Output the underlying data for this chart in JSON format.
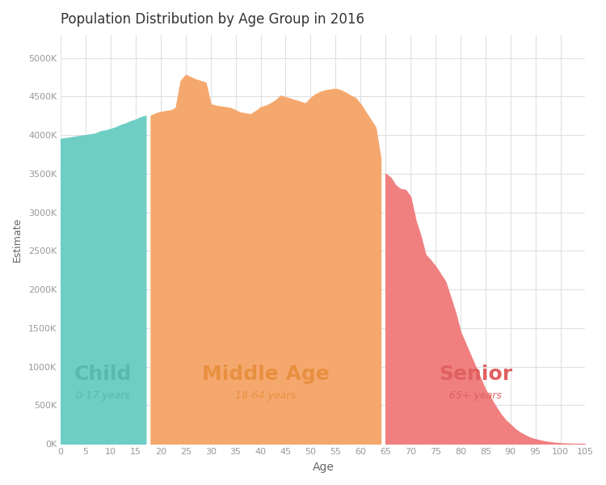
{
  "title": "Population Distribution by Age Group in 2016",
  "xlabel": "Age",
  "ylabel": "Estimate",
  "background_color": "#ffffff",
  "grid_color": "#e0e0e0",
  "child_color": "#6ecec4",
  "middle_color": "#f5a86e",
  "senior_color": "#f08080",
  "child_label": "Child",
  "child_sublabel": "0-17 years",
  "middle_label": "Middle Age",
  "middle_sublabel": "18-64 years",
  "senior_label": "Senior",
  "senior_sublabel": "65+ years",
  "child_label_color": "#5ab8ae",
  "middle_label_color": "#e89040",
  "senior_label_color": "#e06060",
  "title_fontsize": 12,
  "label_fontsize": 18,
  "sublabel_fontsize": 9,
  "xlim": [
    0,
    105
  ],
  "ylim": [
    0,
    5300000
  ],
  "yticks": [
    0,
    500000,
    1000000,
    1500000,
    2000000,
    2500000,
    3000000,
    3500000,
    4000000,
    4500000,
    5000000
  ],
  "xticks": [
    0,
    5,
    10,
    15,
    20,
    25,
    30,
    35,
    40,
    45,
    50,
    55,
    60,
    65,
    70,
    75,
    80,
    85,
    90,
    95,
    100,
    105
  ],
  "child_ages": [
    0,
    1,
    2,
    3,
    4,
    5,
    6,
    7,
    8,
    9,
    10,
    11,
    12,
    13,
    14,
    15,
    16,
    17
  ],
  "child_pop": [
    3950000,
    3960000,
    3970000,
    3980000,
    3990000,
    4000000,
    4010000,
    4020000,
    4050000,
    4060000,
    4080000,
    4100000,
    4130000,
    4150000,
    4180000,
    4200000,
    4230000,
    4250000
  ],
  "middle_ages": [
    18,
    19,
    20,
    21,
    22,
    23,
    24,
    25,
    26,
    27,
    28,
    29,
    30,
    31,
    32,
    33,
    34,
    35,
    36,
    37,
    38,
    39,
    40,
    41,
    42,
    43,
    44,
    45,
    46,
    47,
    48,
    49,
    50,
    51,
    52,
    53,
    54,
    55,
    56,
    57,
    58,
    59,
    60,
    61,
    62,
    63,
    64
  ],
  "middle_pop": [
    4250000,
    4280000,
    4300000,
    4310000,
    4320000,
    4350000,
    4700000,
    4780000,
    4750000,
    4720000,
    4700000,
    4680000,
    4400000,
    4380000,
    4370000,
    4360000,
    4350000,
    4320000,
    4290000,
    4280000,
    4270000,
    4310000,
    4360000,
    4380000,
    4410000,
    4450000,
    4510000,
    4490000,
    4470000,
    4450000,
    4430000,
    4410000,
    4480000,
    4530000,
    4560000,
    4580000,
    4590000,
    4600000,
    4580000,
    4550000,
    4510000,
    4480000,
    4400000,
    4300000,
    4200000,
    4100000,
    3700000
  ],
  "senior_ages": [
    65,
    66,
    67,
    68,
    69,
    70,
    71,
    72,
    73,
    74,
    75,
    76,
    77,
    78,
    79,
    80,
    81,
    82,
    83,
    84,
    85,
    86,
    87,
    88,
    89,
    90,
    91,
    92,
    93,
    94,
    95,
    96,
    97,
    98,
    99,
    100,
    101,
    102,
    103,
    104,
    105
  ],
  "senior_pop": [
    3500000,
    3450000,
    3350000,
    3300000,
    3290000,
    3200000,
    2900000,
    2700000,
    2450000,
    2380000,
    2300000,
    2200000,
    2100000,
    1900000,
    1700000,
    1450000,
    1300000,
    1150000,
    1000000,
    850000,
    700000,
    600000,
    490000,
    390000,
    310000,
    250000,
    190000,
    145000,
    110000,
    80000,
    60000,
    45000,
    32000,
    22000,
    14000,
    9000,
    5500,
    3500,
    2000,
    1000,
    400
  ]
}
